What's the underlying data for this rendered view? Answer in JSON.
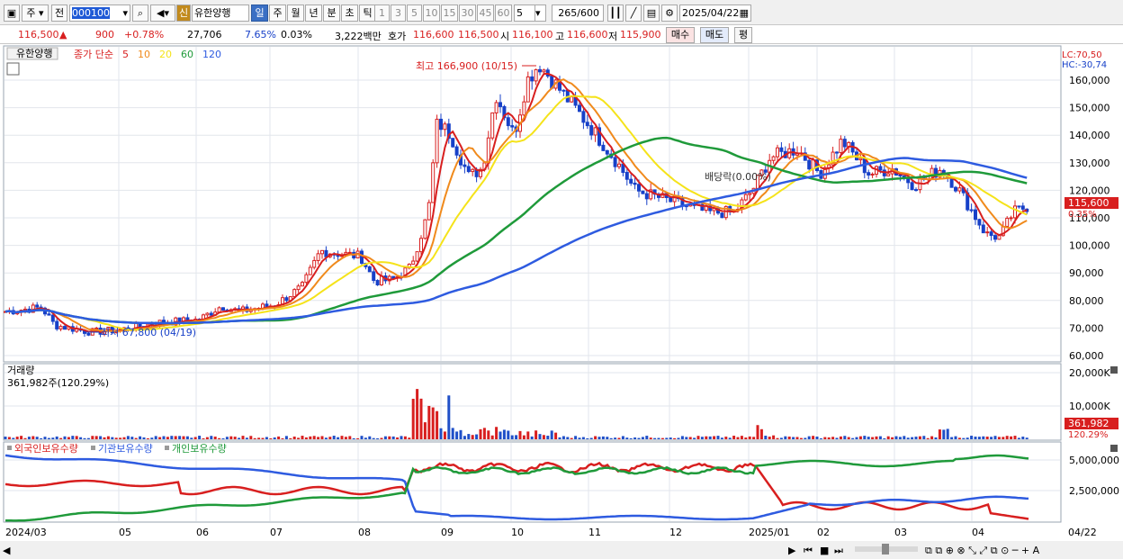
{
  "toolbar": {
    "market": "주",
    "period_mode": "전",
    "code": "000100",
    "tag": "신",
    "stock_name": "유한양행",
    "tabs": [
      "일",
      "주",
      "월",
      "년",
      "분",
      "초",
      "틱"
    ],
    "active_tab": "일",
    "intervals": [
      "1",
      "3",
      "5",
      "10",
      "15",
      "30",
      "45",
      "60"
    ],
    "interval_value": "5",
    "count": "265",
    "count_max": "/600",
    "date": "2025/04/22"
  },
  "quote": {
    "price": "116,500",
    "change_arrow": "▲",
    "change": "900",
    "change_pct": "+0.78%",
    "volume": "27,706",
    "vol_ratio": "7.65%",
    "turnover": "0.03%",
    "amount": "3,222백만",
    "hoga_label": "호가",
    "ask": "116,600",
    "bid": "116,500",
    "open_label": "시",
    "open": "116,100",
    "high_label": "고",
    "high": "116,600",
    "low_label": "저",
    "low": "115,900",
    "buy": "매수",
    "sell": "매도",
    "eval": "평"
  },
  "price_panel": {
    "title": "유한양행",
    "legend_label": "종가 단순",
    "ma": [
      {
        "period": "5",
        "color": "#d81f1f"
      },
      {
        "period": "10",
        "color": "#f08a1c"
      },
      {
        "period": "20",
        "color": "#f5e31a"
      },
      {
        "period": "60",
        "color": "#1f9a3a"
      },
      {
        "period": "120",
        "color": "#2e5be0"
      }
    ],
    "lc": "LC:70,50",
    "hc": "HC:-30,74",
    "high_note": "최고 166,900 (10/15)",
    "low_note": "최저 67,800 (04/19)",
    "dividend_note": "배당락(0.00%)",
    "last_price_tag": "115,600",
    "last_pct_tag": "0.35%",
    "y_ticks": [
      "160,000",
      "150,000",
      "140,000",
      "130,000",
      "120,000",
      "110,000",
      "100,000",
      "90,000",
      "80,000",
      "70,000",
      "60,000"
    ]
  },
  "volume_panel": {
    "title": "거래량",
    "value": "361,982주(120.29%)",
    "y_ticks": [
      "20,000K",
      "10,000K"
    ],
    "tag": "361,982",
    "tag_pct": "120.29%"
  },
  "holder_panel": {
    "legend": [
      "외국인보유수량",
      "기관보유수량",
      "개인보유수량"
    ],
    "colors": [
      "#d81f1f",
      "#2e5be0",
      "#1f9a3a"
    ],
    "y_ticks": [
      "5,000,000",
      "2,500,000"
    ]
  },
  "x_axis": {
    "labels": [
      "2024/03",
      "05",
      "06",
      "07",
      "08",
      "09",
      "10",
      "11",
      "12",
      "2025/01",
      "02",
      "03",
      "04"
    ],
    "last_date": "04/22"
  }
}
